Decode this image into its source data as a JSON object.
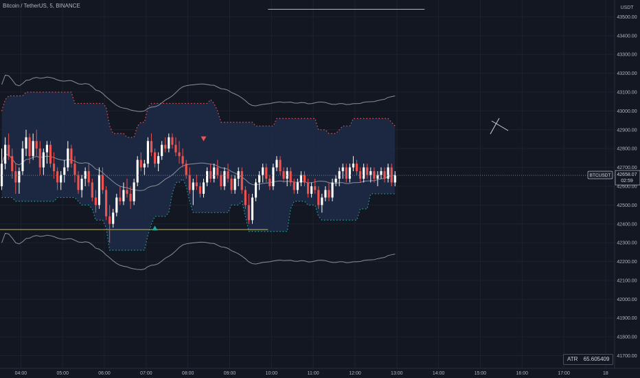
{
  "header": {
    "title": "Bitcoin / TetherUS, 5, BINANCE",
    "currency": "USDT"
  },
  "price_badge": {
    "symbol": "BTCUSDT",
    "price": "42658.07",
    "countdown": "02:59"
  },
  "indicator": {
    "name": "ATR",
    "value": "65.605409"
  },
  "colors": {
    "background": "#131722",
    "up": "#ffffff",
    "down": "#ef5350",
    "bull_green": "#26a69a",
    "cloud": "#1f2b47",
    "level_line": "#c0c05a",
    "ma_line": "#8a8f99"
  },
  "chart_data": {
    "type": "candlestick",
    "y_axis": {
      "labels": [
        "43500.00",
        "43400.00",
        "43300.00",
        "43200.00",
        "43100.00",
        "43000.00",
        "42900.00",
        "42800.00",
        "42700.00",
        "42600.00",
        "42500.00",
        "42400.00",
        "42300.00",
        "42200.00",
        "42100.00",
        "42000.00",
        "41900.00",
        "41800.00",
        "41700.00"
      ],
      "range": [
        41680,
        43560
      ]
    },
    "x_axis": {
      "labels": [
        "04:00",
        "05:00",
        "06:00",
        "07:00",
        "08:00",
        "09:00",
        "10:00",
        "11:00",
        "12:00",
        "13:00",
        "14:00",
        "15:00",
        "16:00",
        "17:00",
        "18"
      ],
      "start": "03:30",
      "end": "18:05"
    },
    "last_price": 42658.07,
    "candles": [
      [
        "03:30",
        42600,
        42800,
        42580,
        42720
      ],
      [
        "03:35",
        42720,
        42860,
        42690,
        42820
      ],
      [
        "03:40",
        42820,
        42880,
        42740,
        42760
      ],
      [
        "03:45",
        42760,
        42800,
        42640,
        42680
      ],
      [
        "03:50",
        42680,
        42720,
        42560,
        42620
      ],
      [
        "03:55",
        42620,
        42700,
        42560,
        42680
      ],
      [
        "04:00",
        42680,
        42840,
        42660,
        42800
      ],
      [
        "04:05",
        42800,
        42900,
        42760,
        42860
      ],
      [
        "04:10",
        42860,
        42880,
        42720,
        42760
      ],
      [
        "04:15",
        42760,
        42880,
        42740,
        42840
      ],
      [
        "04:20",
        42840,
        42900,
        42760,
        42800
      ],
      [
        "04:25",
        42800,
        42840,
        42660,
        42700
      ],
      [
        "04:30",
        42700,
        42800,
        42660,
        42780
      ],
      [
        "04:35",
        42780,
        42840,
        42720,
        42820
      ],
      [
        "04:40",
        42820,
        42840,
        42700,
        42720
      ],
      [
        "04:45",
        42720,
        42780,
        42640,
        42680
      ],
      [
        "04:50",
        42680,
        42700,
        42580,
        42620
      ],
      [
        "04:55",
        42620,
        42680,
        42580,
        42660
      ],
      [
        "05:00",
        42660,
        42740,
        42620,
        42700
      ],
      [
        "05:05",
        42700,
        42840,
        42680,
        42800
      ],
      [
        "05:10",
        42800,
        42820,
        42700,
        42720
      ],
      [
        "05:15",
        42720,
        42760,
        42620,
        42660
      ],
      [
        "05:20",
        42660,
        42680,
        42560,
        42580
      ],
      [
        "05:25",
        42580,
        42660,
        42540,
        42640
      ],
      [
        "05:30",
        42640,
        42700,
        42600,
        42680
      ],
      [
        "05:35",
        42680,
        42720,
        42600,
        42620
      ],
      [
        "05:40",
        42620,
        42640,
        42520,
        42540
      ],
      [
        "05:45",
        42540,
        42580,
        42460,
        42500
      ],
      [
        "05:50",
        42500,
        42700,
        42480,
        42660
      ],
      [
        "05:55",
        42660,
        42700,
        42560,
        42580
      ],
      [
        "06:00",
        42580,
        42600,
        42420,
        42440
      ],
      [
        "06:05",
        42440,
        42500,
        42300,
        42400
      ],
      [
        "06:10",
        42400,
        42480,
        42380,
        42460
      ],
      [
        "06:15",
        42460,
        42560,
        42440,
        42540
      ],
      [
        "06:20",
        42540,
        42600,
        42500,
        42520
      ],
      [
        "06:25",
        42520,
        42620,
        42500,
        42580
      ],
      [
        "06:30",
        42580,
        42640,
        42540,
        42560
      ],
      [
        "06:35",
        42560,
        42600,
        42480,
        42520
      ],
      [
        "06:40",
        42520,
        42640,
        42500,
        42620
      ],
      [
        "06:45",
        42620,
        42760,
        42600,
        42740
      ],
      [
        "06:50",
        42740,
        42780,
        42680,
        42700
      ],
      [
        "06:55",
        42700,
        42740,
        42660,
        42720
      ],
      [
        "07:00",
        42720,
        42860,
        42700,
        42840
      ],
      [
        "07:05",
        42840,
        42880,
        42760,
        42780
      ],
      [
        "07:10",
        42780,
        42800,
        42700,
        42720
      ],
      [
        "07:15",
        42720,
        42780,
        42680,
        42760
      ],
      [
        "07:20",
        42760,
        42840,
        42740,
        42820
      ],
      [
        "07:25",
        42820,
        42860,
        42780,
        42800
      ],
      [
        "07:30",
        42800,
        42880,
        42780,
        42860
      ],
      [
        "07:35",
        42860,
        42880,
        42800,
        42820
      ],
      [
        "07:40",
        42820,
        42860,
        42760,
        42780
      ],
      [
        "07:45",
        42780,
        42840,
        42720,
        42760
      ],
      [
        "07:50",
        42760,
        42800,
        42700,
        42720
      ],
      [
        "07:55",
        42720,
        42740,
        42640,
        42660
      ],
      [
        "08:00",
        42660,
        42700,
        42560,
        42580
      ],
      [
        "08:05",
        42580,
        42640,
        42500,
        42620
      ],
      [
        "08:10",
        42620,
        42660,
        42580,
        42600
      ],
      [
        "08:15",
        42600,
        42620,
        42540,
        42560
      ],
      [
        "08:20",
        42560,
        42640,
        42540,
        42620
      ],
      [
        "08:25",
        42620,
        42700,
        42600,
        42680
      ],
      [
        "08:30",
        42680,
        42720,
        42620,
        42640
      ],
      [
        "08:35",
        42640,
        42720,
        42620,
        42700
      ],
      [
        "08:40",
        42700,
        42740,
        42640,
        42660
      ],
      [
        "08:45",
        42660,
        42680,
        42580,
        42600
      ],
      [
        "08:50",
        42600,
        42700,
        42580,
        42680
      ],
      [
        "08:55",
        42680,
        42720,
        42620,
        42640
      ],
      [
        "09:00",
        42640,
        42660,
        42560,
        42580
      ],
      [
        "09:05",
        42580,
        42660,
        42560,
        42640
      ],
      [
        "09:10",
        42640,
        42700,
        42600,
        42680
      ],
      [
        "09:15",
        42680,
        42700,
        42560,
        42580
      ],
      [
        "09:20",
        42580,
        42600,
        42480,
        42500
      ],
      [
        "09:25",
        42500,
        42560,
        42400,
        42420
      ],
      [
        "09:30",
        42420,
        42560,
        42400,
        42540
      ],
      [
        "09:35",
        42540,
        42640,
        42520,
        42620
      ],
      [
        "09:40",
        42620,
        42680,
        42580,
        42660
      ],
      [
        "09:45",
        42660,
        42720,
        42620,
        42700
      ],
      [
        "09:50",
        42700,
        42720,
        42620,
        42640
      ],
      [
        "09:55",
        42640,
        42660,
        42580,
        42600
      ],
      [
        "10:00",
        42600,
        42720,
        42580,
        42700
      ],
      [
        "10:05",
        42700,
        42760,
        42680,
        42740
      ],
      [
        "10:10",
        42740,
        42760,
        42660,
        42680
      ],
      [
        "10:15",
        42680,
        42700,
        42620,
        42640
      ],
      [
        "10:20",
        42640,
        42700,
        42600,
        42680
      ],
      [
        "10:25",
        42680,
        42700,
        42600,
        42620
      ],
      [
        "10:30",
        42620,
        42640,
        42560,
        42580
      ],
      [
        "10:35",
        42580,
        42640,
        42560,
        42620
      ],
      [
        "10:40",
        42620,
        42680,
        42600,
        42660
      ],
      [
        "10:45",
        42660,
        42680,
        42600,
        42620
      ],
      [
        "10:50",
        42620,
        42640,
        42540,
        42560
      ],
      [
        "10:55",
        42560,
        42620,
        42540,
        42600
      ],
      [
        "11:00",
        42600,
        42640,
        42560,
        42580
      ],
      [
        "11:05",
        42580,
        42600,
        42480,
        42500
      ],
      [
        "11:10",
        42500,
        42560,
        42460,
        42540
      ],
      [
        "11:15",
        42540,
        42600,
        42520,
        42580
      ],
      [
        "11:20",
        42580,
        42620,
        42520,
        42540
      ],
      [
        "11:25",
        42540,
        42640,
        42520,
        42620
      ],
      [
        "11:30",
        42620,
        42660,
        42600,
        42640
      ],
      [
        "11:35",
        42640,
        42700,
        42600,
        42680
      ],
      [
        "11:40",
        42680,
        42720,
        42640,
        42700
      ],
      [
        "11:45",
        42700,
        42720,
        42620,
        42640
      ],
      [
        "11:50",
        42640,
        42720,
        42620,
        42700
      ],
      [
        "11:55",
        42700,
        42760,
        42680,
        42720
      ],
      [
        "12:00",
        42720,
        42740,
        42660,
        42680
      ],
      [
        "12:05",
        42680,
        42700,
        42620,
        42640
      ],
      [
        "12:10",
        42640,
        42720,
        42620,
        42700
      ],
      [
        "12:15",
        42700,
        42720,
        42640,
        42660
      ],
      [
        "12:20",
        42660,
        42700,
        42620,
        42680
      ],
      [
        "12:25",
        42680,
        42700,
        42620,
        42640
      ],
      [
        "12:30",
        42640,
        42680,
        42600,
        42660
      ],
      [
        "12:35",
        42660,
        42700,
        42640,
        42680
      ],
      [
        "12:40",
        42680,
        42700,
        42620,
        42640
      ],
      [
        "12:45",
        42640,
        42720,
        42620,
        42700
      ],
      [
        "12:50",
        42700,
        42720,
        42600,
        42620
      ],
      [
        "12:55",
        42620,
        42680,
        42600,
        42658
      ]
    ]
  }
}
